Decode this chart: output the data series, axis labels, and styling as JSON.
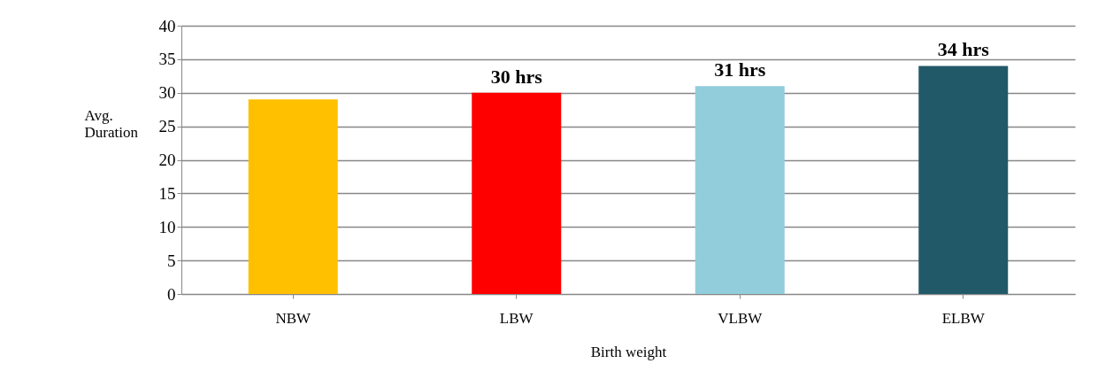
{
  "chart_data": {
    "type": "bar",
    "xlabel": "Birth weight",
    "ylabel": "Avg. Duration",
    "categories": [
      "NBW",
      "LBW",
      "VLBW",
      "ELBW"
    ],
    "values": [
      29,
      30,
      31,
      34
    ],
    "colors": [
      "#ffc000",
      "#ff0000",
      "#92cddc",
      "#215968"
    ],
    "value_labels": [
      null,
      "30 hrs",
      "31 hrs",
      "34 hrs"
    ],
    "ylim": [
      0,
      40
    ],
    "yticks": [
      0,
      5,
      10,
      15,
      20,
      25,
      30,
      35,
      40
    ],
    "grid": "y"
  }
}
